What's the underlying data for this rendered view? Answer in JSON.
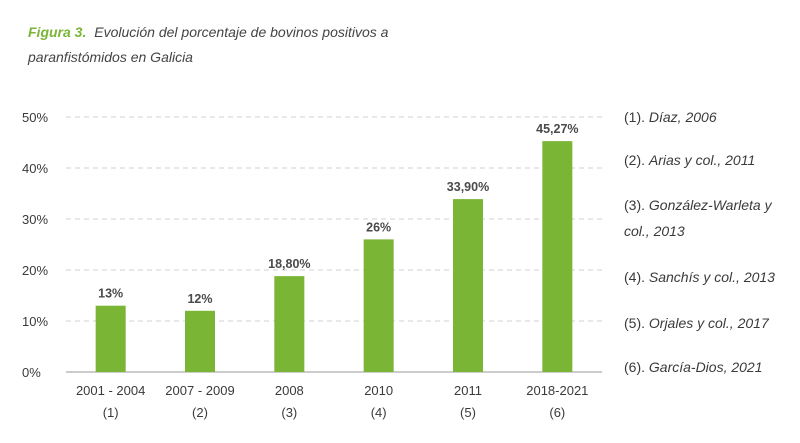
{
  "figure": {
    "label": "Figura 3.",
    "title": "Evolución del porcentaje de bovinos positivos a paranfistómidos en Galicia"
  },
  "colors": {
    "bar": "#7ab536",
    "grid": "#d0d0d0",
    "label_accent": "#7ab536"
  },
  "chart_data": {
    "type": "bar",
    "title": "",
    "xlabel": "",
    "ylabel": "",
    "ylim": [
      0,
      50
    ],
    "yticks": [
      0,
      10,
      20,
      30,
      40,
      50
    ],
    "ytick_labels": [
      "0%",
      "10%",
      "20%",
      "30%",
      "40%",
      "50%"
    ],
    "grid": true,
    "categories": [
      {
        "line1": "2001 - 2004",
        "line2": "(1)"
      },
      {
        "line1": "2007 - 2009",
        "line2": "(2)"
      },
      {
        "line1": "2008",
        "line2": "(3)"
      },
      {
        "line1": "2010",
        "line2": "(4)"
      },
      {
        "line1": "2011",
        "line2": "(5)"
      },
      {
        "line1": "2018-2021",
        "line2": "(6)"
      }
    ],
    "values": [
      13,
      12,
      18.8,
      26,
      33.9,
      45.27
    ],
    "data_labels": [
      "13%",
      "12%",
      "18,80%",
      "26%",
      "33,90%",
      "45,27%"
    ]
  },
  "references": [
    {
      "num": "(1).",
      "text": "Díaz, 2006"
    },
    {
      "num": "(2).",
      "text": "Arias y col., 2011"
    },
    {
      "num": "(3).",
      "text": "González-Warleta y col., 2013"
    },
    {
      "num": "(4).",
      "text": "Sanchís y col., 2013"
    },
    {
      "num": "(5).",
      "text": "Orjales y col., 2017"
    },
    {
      "num": "(6).",
      "text": "García-Dios, 2021"
    }
  ]
}
